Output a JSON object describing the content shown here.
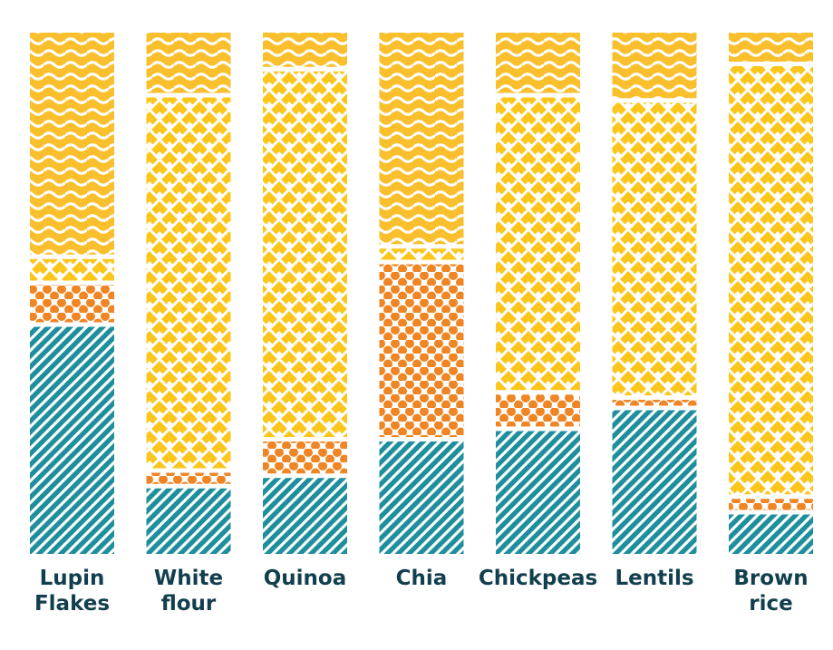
{
  "chart_data": {
    "type": "bar",
    "stacked": true,
    "normalized": true,
    "categories": [
      "Lupin\nFlakes",
      "White\nflour",
      "Quinoa",
      "Chia",
      "Chickpeas",
      "Lentils",
      "Brown\nrice"
    ],
    "series": [
      {
        "key": "diagonal-stripes",
        "values": [
          0.44,
          0.13,
          0.15,
          0.22,
          0.24,
          0.28,
          0.08
        ]
      },
      {
        "key": "dots",
        "values": [
          0.08,
          0.03,
          0.07,
          0.34,
          0.07,
          0.02,
          0.03
        ]
      },
      {
        "key": "diamonds",
        "values": [
          0.05,
          0.72,
          0.71,
          0.03,
          0.57,
          0.57,
          0.83
        ]
      },
      {
        "key": "waves",
        "values": [
          0.43,
          0.12,
          0.07,
          0.41,
          0.12,
          0.13,
          0.06
        ]
      }
    ],
    "colors": {
      "diagonal-stripes": "#1e8f9c",
      "dots": "#f08524",
      "diamonds": "#fcc61c",
      "waves": "#f9bf2c",
      "label": "#123f4d"
    },
    "legend": "none",
    "grid": false,
    "ylim": [
      0,
      1
    ]
  }
}
